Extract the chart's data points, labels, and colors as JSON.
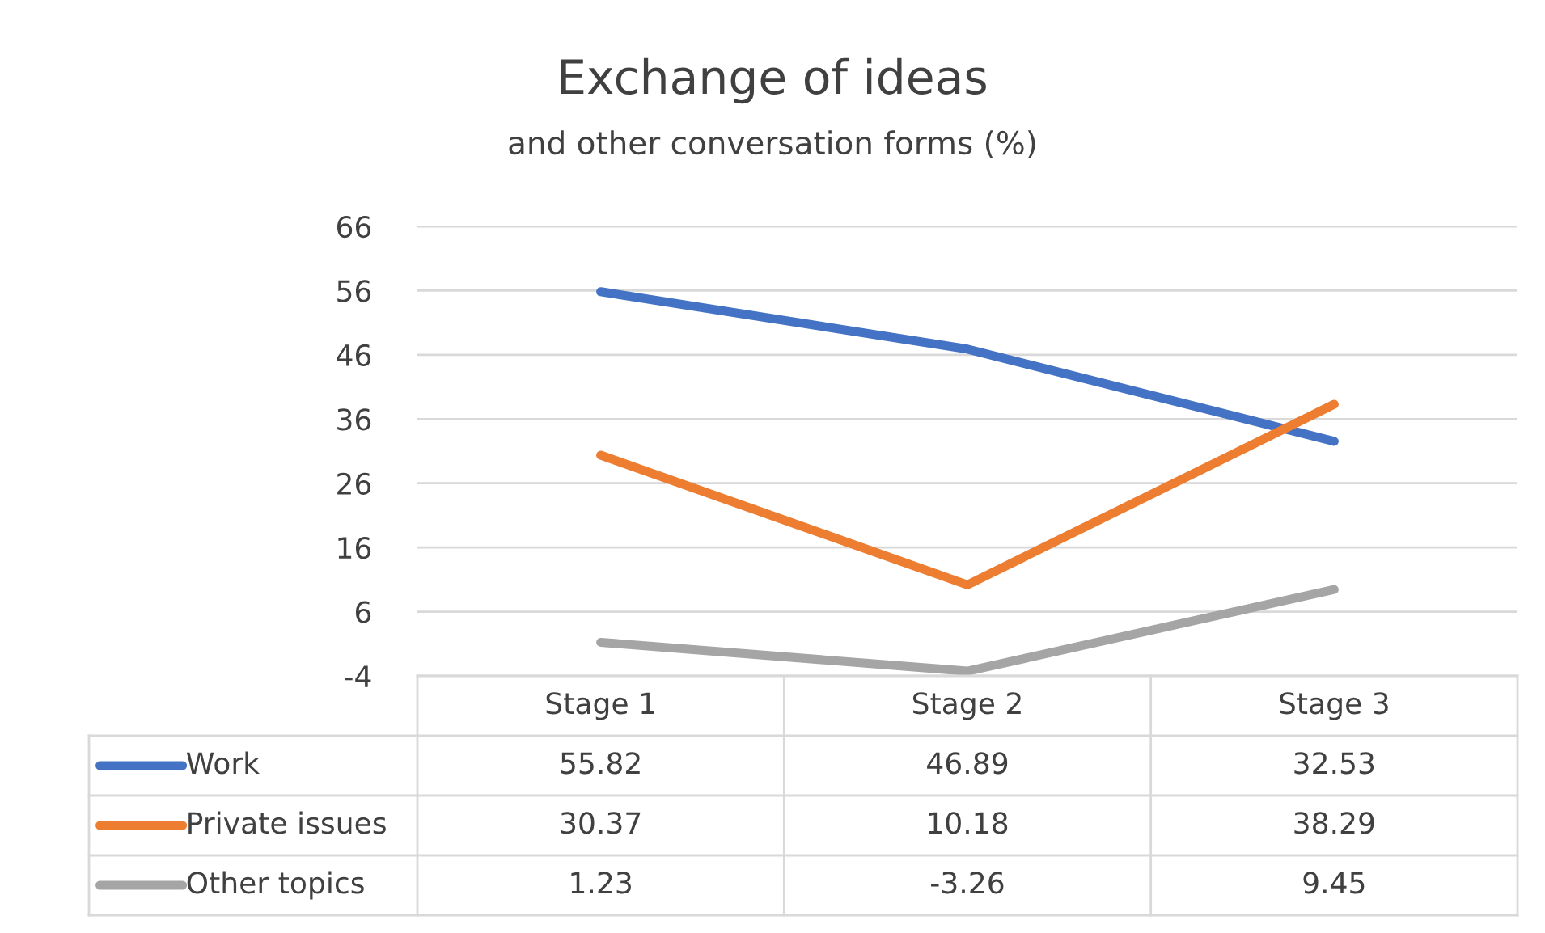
{
  "chart_data": {
    "type": "line",
    "title": "Exchange of ideas",
    "subtitle": "and other conversation forms (%)",
    "categories": [
      "Stage 1",
      "Stage 2",
      "Stage 3"
    ],
    "series": [
      {
        "name": "Work",
        "color": "#4472c4",
        "values": [
          55.82,
          46.89,
          32.53
        ]
      },
      {
        "name": "Private issues",
        "color": "#ed7d31",
        "values": [
          30.37,
          10.18,
          38.29
        ]
      },
      {
        "name": "Other topics",
        "color": "#a5a5a5",
        "values": [
          1.23,
          -3.26,
          9.45
        ]
      }
    ],
    "ylim": [
      -4,
      66
    ],
    "yticks": [
      -4,
      6,
      16,
      26,
      36,
      46,
      56,
      66
    ],
    "grid": "y",
    "legend": "bottom left",
    "marker": "none",
    "line_style": "solid",
    "data_labels": true
  }
}
